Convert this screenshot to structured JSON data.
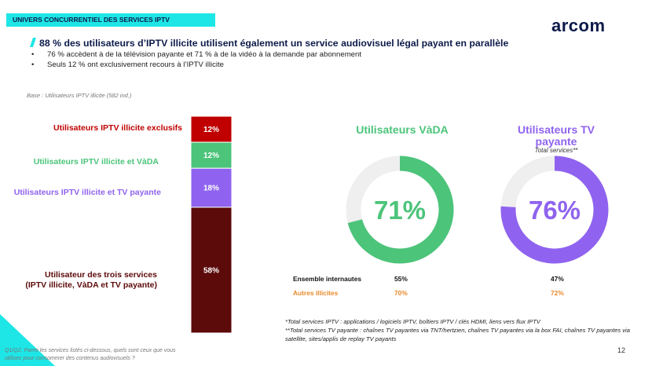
{
  "header": {
    "tag": "UNIVERS CONCURRENTIEL DES SERVICES IPTV",
    "logo": "arcom",
    "title": "88 % des utilisateurs d’IPTV illicite utilisent également un service audiovisuel légal payant en parallèle",
    "bullets": [
      "76 % accèdent à de la télévision payante et 71 % à de la vidéo à la demande par abonnement",
      "Seuls 12 % ont exclusivement recours à l’IPTV illicite"
    ]
  },
  "base": "Base : Utilisateurs IPTV illicite (582 ind.)",
  "chart_data": [
    {
      "type": "stacked-bar",
      "ylim": [
        0,
        100
      ],
      "series": [
        {
          "name": "Utilisateurs IPTV illicite exclusifs",
          "color": "#c00000",
          "values": [
            12
          ],
          "value_labels": [
            "12%"
          ]
        },
        {
          "name": "Utilisateurs IPTV illicite et VàDA",
          "color": "#4cc47a",
          "values": [
            12
          ],
          "value_labels": [
            "12%"
          ]
        },
        {
          "name": "Utilisateurs IPTV illicite et TV payante",
          "color": "#8f63ef",
          "values": [
            18
          ],
          "value_labels": [
            "18%"
          ]
        },
        {
          "name": "Utilisateur des trois services (IPTV illicite, VàDA et TV payante)",
          "color": "#5c0a0a",
          "values": [
            58
          ],
          "value_labels": [
            "58%"
          ]
        }
      ]
    },
    {
      "type": "donut",
      "title": "Utilisateurs VàDA",
      "color": "#4cc47a",
      "ylim": [
        0,
        100
      ],
      "values": [
        71
      ],
      "value_labels": [
        "71%"
      ]
    },
    {
      "type": "donut",
      "title": "Utilisateurs TV payante",
      "subtitle": "Total services**",
      "color": "#8f63ef",
      "ylim": [
        0,
        100
      ],
      "values": [
        76
      ],
      "value_labels": [
        "76%"
      ]
    }
  ],
  "comparison": {
    "rows": [
      {
        "label": "Ensemble internautes",
        "values": [
          "55%",
          "47%"
        ]
      },
      {
        "label": "Autres illicites",
        "values": [
          "70%",
          "72%"
        ]
      }
    ]
  },
  "footnotes": [
    "*Total services IPTV : applications / logiciels IPTV, boîtiers IPTV / clés HDMI, liens vers flux IPTV",
    "**Total services TV payante : chaînes TV payantes via TNT/hertzien, chaînes TV payantes via la box FAI, chaînes TV payantes via satellite, sites/applis de replay TV payants"
  ],
  "question": "Q1/Q2. Parmi les services listés ci-dessous, quels sont ceux que vous utilisez pour consommer des contenus audiovisuels ?",
  "page_number": "12"
}
